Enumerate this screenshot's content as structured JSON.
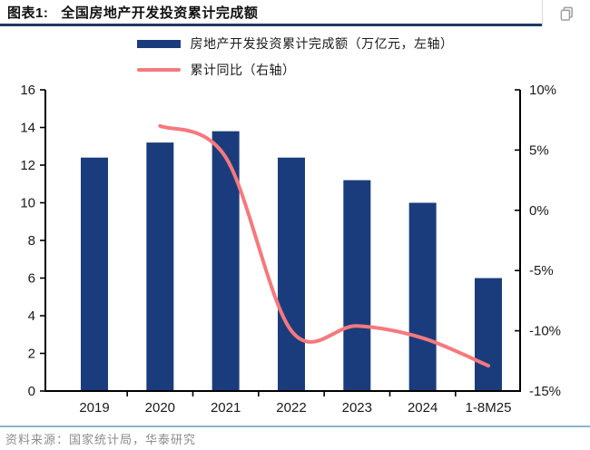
{
  "header": {
    "figure_tag": "图表1:",
    "figure_title": "全国房地产开发投资累计完成额"
  },
  "legend": [
    {
      "label": "房地产开发投资累计完成额（万亿元，左轴）",
      "swatch": "bar",
      "color": "#1b3c7c"
    },
    {
      "label": "累计同比（右轴）",
      "swatch": "line",
      "color": "#f5797d"
    }
  ],
  "chart_data": {
    "type": "bar+line",
    "title": "全国房地产开发投资累计完成额",
    "categories": [
      "2019",
      "2020",
      "2021",
      "2022",
      "2023",
      "2024",
      "1-8M25"
    ],
    "series": [
      {
        "name": "房地产开发投资累计完成额（万亿元，左轴）",
        "type": "bar",
        "axis": "left",
        "color": "#1b3c7c",
        "values": [
          12.4,
          13.2,
          13.8,
          12.4,
          11.2,
          10.0,
          6.0
        ]
      },
      {
        "name": "累计同比（右轴）",
        "type": "line",
        "axis": "right",
        "color": "#f5797d",
        "values": [
          null,
          7.0,
          4.4,
          -10.0,
          -9.6,
          -10.6,
          -12.9
        ]
      }
    ],
    "left_axis": {
      "min": 0,
      "max": 16,
      "ticks": [
        0,
        2,
        4,
        6,
        8,
        10,
        12,
        14,
        16
      ]
    },
    "right_axis": {
      "min": -15,
      "max": 10,
      "ticks": [
        {
          "value": 10,
          "label": "10%"
        },
        {
          "value": 5,
          "label": "5%"
        },
        {
          "value": 0,
          "label": "0%"
        },
        {
          "value": -5,
          "label": "-5%"
        },
        {
          "value": -10,
          "label": "-10%"
        },
        {
          "value": -15,
          "label": "-15%"
        }
      ]
    },
    "legend_position": "top",
    "grid": false
  },
  "footer": {
    "source": "资料来源：国家统计局，华泰研究"
  },
  "colors": {
    "bar": "#1b3c7c",
    "line": "#f5797d",
    "header_underline": "#1f3864",
    "footer_divider": "#8fb3cd",
    "axis": "#000000"
  }
}
